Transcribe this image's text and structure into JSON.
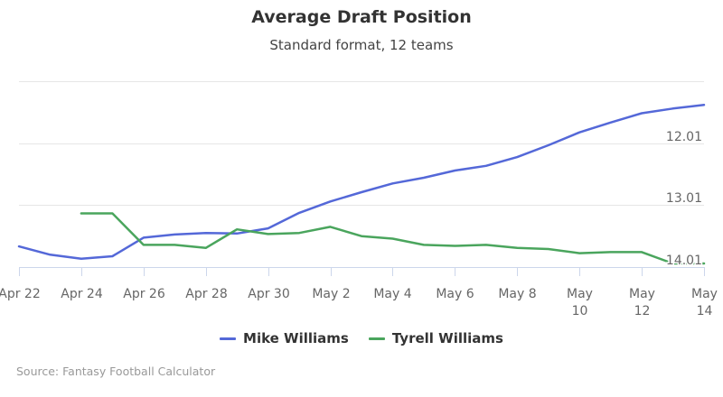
{
  "chart_data": {
    "type": "line",
    "title": "Average Draft Position",
    "subtitle": "Standard format, 12 teams",
    "x": [
      "Apr 22",
      "Apr 23",
      "Apr 24",
      "Apr 25",
      "Apr 26",
      "Apr 27",
      "Apr 28",
      "Apr 29",
      "Apr 30",
      "May 1",
      "May 2",
      "May 3",
      "May 4",
      "May 5",
      "May 6",
      "May 7",
      "May 8",
      "May 9",
      "May 10",
      "May 11",
      "May 12",
      "May 13",
      "May 14"
    ],
    "x_tick_labels": [
      {
        "x": "Apr 22",
        "lines": [
          "Apr 22"
        ]
      },
      {
        "x": "Apr 24",
        "lines": [
          "Apr 24"
        ]
      },
      {
        "x": "Apr 26",
        "lines": [
          "Apr 26"
        ]
      },
      {
        "x": "Apr 28",
        "lines": [
          "Apr 28"
        ]
      },
      {
        "x": "Apr 30",
        "lines": [
          "Apr 30"
        ]
      },
      {
        "x": "May 2",
        "lines": [
          "May 2"
        ]
      },
      {
        "x": "May 4",
        "lines": [
          "May 4"
        ]
      },
      {
        "x": "May 6",
        "lines": [
          "May 6"
        ]
      },
      {
        "x": "May 8",
        "lines": [
          "May 8"
        ]
      },
      {
        "x": "May 10",
        "lines": [
          "May",
          "10"
        ]
      },
      {
        "x": "May 12",
        "lines": [
          "May",
          "12"
        ]
      },
      {
        "x": "May 14",
        "lines": [
          "May",
          "14"
        ]
      }
    ],
    "y_tick_labels": [
      {
        "value": 145,
        "label": "12.01"
      },
      {
        "value": 157,
        "label": "13.01"
      },
      {
        "value": 169,
        "label": "14.01"
      }
    ],
    "y_gridlines": [
      133,
      145,
      157,
      169
    ],
    "ylim": [
      133,
      169
    ],
    "y_reversed": true,
    "grid": true,
    "legend_position": "bottom-center",
    "series": [
      {
        "name": "Mike Williams",
        "color": "#5468d8",
        "values": [
          165,
          166.6,
          167.4,
          166.9,
          163.3,
          162.7,
          162.4,
          162.5,
          161.5,
          158.5,
          156.3,
          154.5,
          152.8,
          151.7,
          150.3,
          149.4,
          147.7,
          145.4,
          142.9,
          141.0,
          139.2,
          138.3,
          137.6
        ]
      },
      {
        "name": "Tyrell Williams",
        "color": "#4aa55d",
        "values": [
          null,
          null,
          158.6,
          158.6,
          164.7,
          164.7,
          165.3,
          161.7,
          162.6,
          162.4,
          161.2,
          163.0,
          163.5,
          164.7,
          164.9,
          164.7,
          165.3,
          165.5,
          166.3,
          166.1,
          166.1,
          168.3,
          168.3
        ]
      }
    ]
  },
  "credits": "Source: Fantasy Football Calculator"
}
